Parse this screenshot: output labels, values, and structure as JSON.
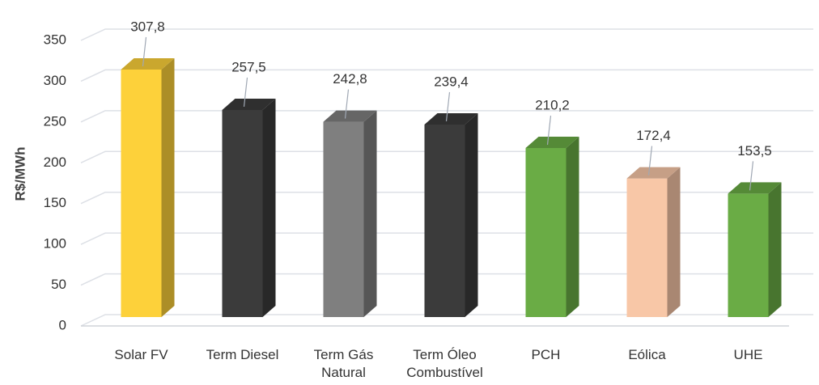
{
  "chart_data": {
    "type": "bar",
    "y_label": "R$/MWh",
    "categories": [
      "Solar FV",
      "Term Diesel",
      "Term Gás\nNatural",
      "Term Óleo\nCombustível",
      "PCH",
      "Eólica",
      "UHE"
    ],
    "values": [
      307.8,
      257.5,
      242.8,
      239.4,
      210.2,
      172.4,
      153.5
    ],
    "value_labels": [
      "307,8",
      "257,5",
      "242,8",
      "239,4",
      "210,2",
      "172,4",
      "153,5"
    ],
    "colors": [
      "#fdd13a",
      "#3b3b3b",
      "#7f7f7f",
      "#3b3b3b",
      "#6aac45",
      "#f8c7a7",
      "#6aac45"
    ],
    "ylim": [
      0,
      350
    ],
    "yticks": [
      0,
      50,
      100,
      150,
      200,
      250,
      300,
      350
    ],
    "grid": true
  }
}
